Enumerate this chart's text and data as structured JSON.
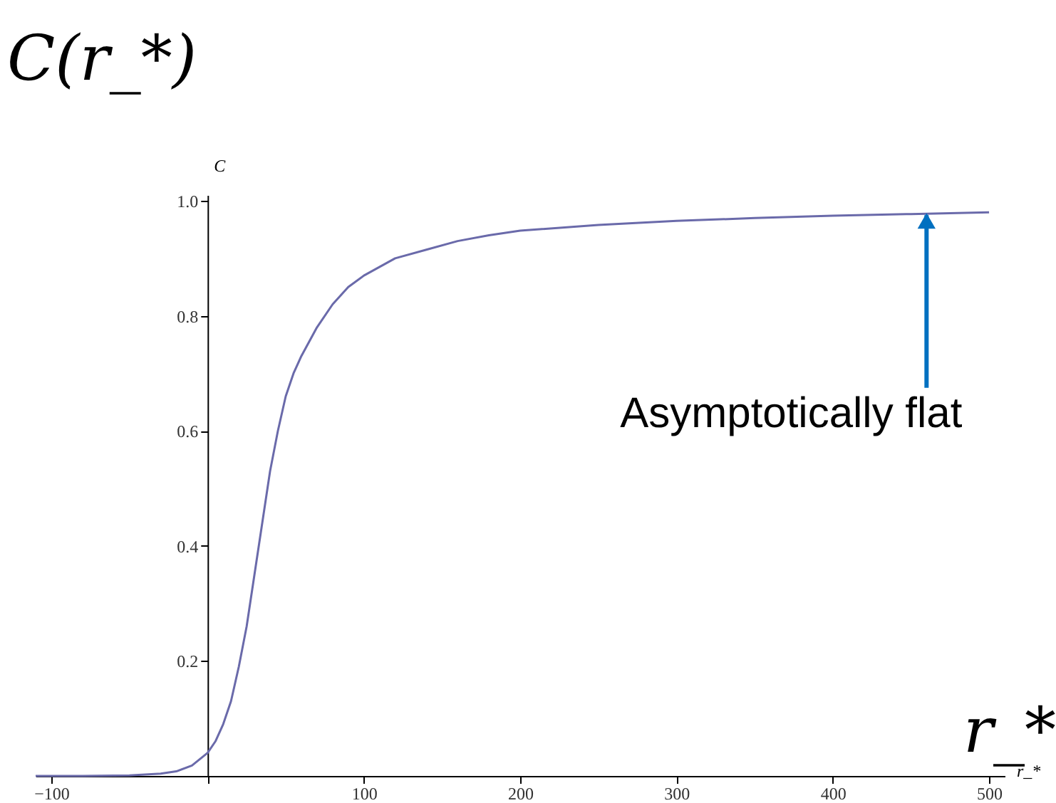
{
  "chart_data": {
    "type": "line",
    "title": "C(r_*)",
    "xlabel": "r_*",
    "ylabel": "C",
    "x": [
      -110,
      -80,
      -50,
      -30,
      -20,
      -10,
      0,
      5,
      10,
      15,
      20,
      25,
      30,
      35,
      40,
      45,
      50,
      55,
      60,
      70,
      80,
      90,
      100,
      120,
      140,
      160,
      180,
      200,
      250,
      300,
      350,
      400,
      450,
      500
    ],
    "series": [
      {
        "color": "#6a6aaa",
        "values": [
          0,
          0,
          0.001,
          0.004,
          0.008,
          0.018,
          0.04,
          0.06,
          0.09,
          0.13,
          0.19,
          0.26,
          0.35,
          0.44,
          0.53,
          0.6,
          0.66,
          0.7,
          0.73,
          0.78,
          0.82,
          0.85,
          0.87,
          0.9,
          0.915,
          0.93,
          0.94,
          0.948,
          0.958,
          0.965,
          0.97,
          0.974,
          0.977,
          0.98
        ]
      }
    ],
    "xlim": [
      -110,
      510
    ],
    "ylim": [
      0,
      1.01
    ],
    "xticks": [
      {
        "value": -100,
        "label": "−100"
      },
      {
        "value": 0,
        "label": null
      },
      100,
      200,
      300,
      400,
      500
    ],
    "yticks": [
      {
        "value": 0,
        "label": null
      },
      0.2,
      0.4,
      0.6,
      0.8,
      {
        "value": 1.0,
        "label": "1.0"
      }
    ],
    "grid": false,
    "marker": "none",
    "line_style": "solid",
    "annotations": [
      {
        "text": "Asymptotically flat",
        "x": 460,
        "y": 0.975
      },
      "r_*"
    ]
  }
}
